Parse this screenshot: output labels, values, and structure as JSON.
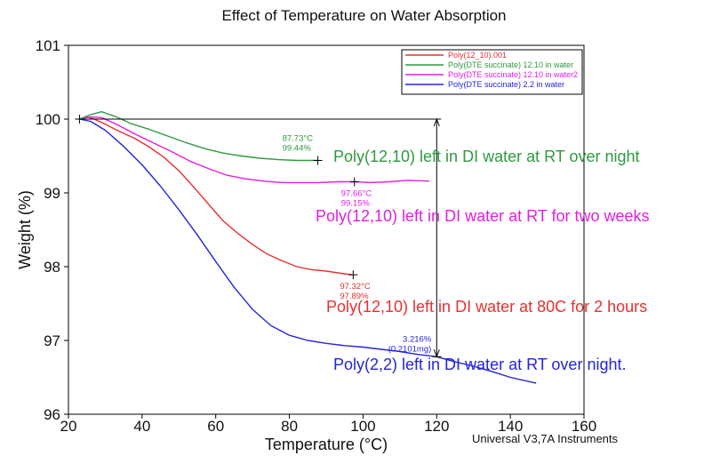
{
  "chart_data": {
    "type": "line",
    "title": "Effect of Temperature on Water Absorption",
    "xlabel": "Temperature (°C)",
    "ylabel": "Weight (%)",
    "xlim": [
      20,
      160
    ],
    "ylim": [
      96,
      101
    ],
    "xticks": [
      20,
      40,
      60,
      80,
      100,
      120,
      140,
      160
    ],
    "yticks": [
      96,
      97,
      98,
      99,
      100,
      101
    ],
    "grid": false,
    "legend_position": "top-right",
    "footer": "Universal V3,7A Instruments",
    "series": [
      {
        "name": "Poly(12_10).001",
        "color": "#e83030",
        "x": [
          23,
          25,
          27,
          30,
          34,
          38,
          42,
          46,
          50,
          54,
          58,
          62,
          66,
          70,
          74,
          78,
          82,
          86,
          90,
          94,
          97
        ],
        "y": [
          100.0,
          100.03,
          100.0,
          99.93,
          99.83,
          99.74,
          99.62,
          99.48,
          99.3,
          99.08,
          98.85,
          98.62,
          98.45,
          98.3,
          98.17,
          98.08,
          98.0,
          97.96,
          97.94,
          97.91,
          97.89
        ]
      },
      {
        "name": "Poly(DTE succinate) 12.10 in water",
        "color": "#2e9a3e",
        "x": [
          23,
          26,
          29,
          33,
          37,
          42,
          47,
          52,
          57,
          62,
          67,
          72,
          77,
          82,
          87.7
        ],
        "y": [
          100.0,
          100.06,
          100.1,
          100.03,
          99.94,
          99.86,
          99.77,
          99.68,
          99.6,
          99.54,
          99.5,
          99.47,
          99.45,
          99.44,
          99.44
        ]
      },
      {
        "name": "Poly(DTE succinate) 12.10 in water2",
        "color": "#e020e0",
        "x": [
          23,
          26,
          29,
          33,
          38,
          43,
          48,
          53,
          58,
          63,
          68,
          73,
          78,
          83,
          88,
          93,
          97.7,
          102,
          107,
          112,
          118
        ],
        "y": [
          100.0,
          100.03,
          100.02,
          99.93,
          99.8,
          99.68,
          99.56,
          99.43,
          99.33,
          99.24,
          99.19,
          99.16,
          99.14,
          99.14,
          99.14,
          99.15,
          99.15,
          99.14,
          99.15,
          99.17,
          99.16
        ]
      },
      {
        "name": "Poly(DTE succinate) 2.2 in water",
        "color": "#2424d8",
        "x": [
          23,
          26,
          30,
          35,
          40,
          45,
          50,
          55,
          60,
          65,
          70,
          75,
          80,
          85,
          90,
          95,
          100,
          105,
          110,
          115,
          120,
          125,
          130,
          135,
          140,
          147
        ],
        "y": [
          100.0,
          99.97,
          99.85,
          99.63,
          99.38,
          99.09,
          98.77,
          98.43,
          98.07,
          97.72,
          97.42,
          97.2,
          97.07,
          97.0,
          96.96,
          96.93,
          96.91,
          96.88,
          96.85,
          96.81,
          96.78,
          96.71,
          96.65,
          96.58,
          96.5,
          96.42
        ]
      }
    ],
    "markers": [
      {
        "x": 87.73,
        "y": 99.44,
        "color": "#2e9a3e",
        "lines": [
          "87.73°C",
          "99.44%"
        ]
      },
      {
        "x": 97.66,
        "y": 99.15,
        "color": "#e020e0",
        "lines": [
          "97.66°C",
          "99.15%"
        ]
      },
      {
        "x": 97.32,
        "y": 97.89,
        "color": "#e83030",
        "lines": [
          "97.32°C",
          "97.89%"
        ]
      }
    ],
    "step_annotation": {
      "x": 120,
      "y_top": 100.0,
      "y_bottom": 96.78,
      "lines": [
        "3.216%",
        "(0.2101mg)"
      ],
      "color": "#2424d8"
    },
    "annotations": [
      {
        "text": "Poly(12,10) left in DI water at RT over night",
        "color": "#2e9a3e"
      },
      {
        "text": "Poly(12,10) left in DI water at RT for two weeks",
        "color": "#e020e0"
      },
      {
        "text": "Poly(12,10) left in DI water at 80C for 2 hours",
        "color": "#e83030"
      },
      {
        "text": "Poly(2,2) left in DI water at RT over night.",
        "color": "#2424d8"
      }
    ]
  }
}
